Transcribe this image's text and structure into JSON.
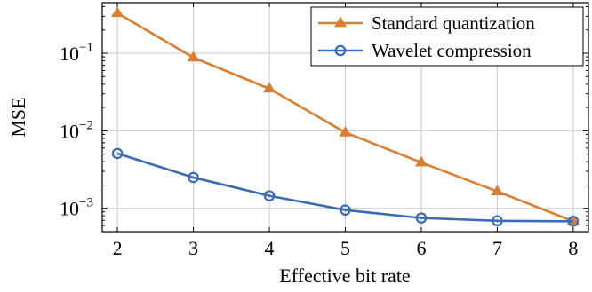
{
  "chart_data": {
    "type": "line",
    "title": "",
    "xlabel": "Effective bit rate",
    "ylabel": "MSE",
    "x": [
      2,
      3,
      4,
      5,
      6,
      7,
      8
    ],
    "xlim": [
      1.8,
      8.2
    ],
    "xticks": [
      "2",
      "3",
      "4",
      "5",
      "6",
      "7",
      "8"
    ],
    "yscale": "log",
    "ylim": [
      0.0005,
      0.45
    ],
    "yticks": [
      {
        "value": 0.001,
        "base": "10",
        "exp": "−3"
      },
      {
        "value": 0.01,
        "base": "10",
        "exp": "−2"
      },
      {
        "value": 0.1,
        "base": "10",
        "exp": "−1"
      }
    ],
    "grid": true,
    "legend_position": "top-right",
    "series": [
      {
        "name": "Standard quantization",
        "color": "#d77f33",
        "marker": "triangle",
        "values": [
          0.33,
          0.088,
          0.035,
          0.0095,
          0.0039,
          0.00165,
          0.00068
        ]
      },
      {
        "name": "Wavelet compression",
        "color": "#3a6bb3",
        "marker": "circle",
        "values": [
          0.0051,
          0.0025,
          0.00145,
          0.00095,
          0.00075,
          0.00069,
          0.00068
        ]
      }
    ]
  }
}
